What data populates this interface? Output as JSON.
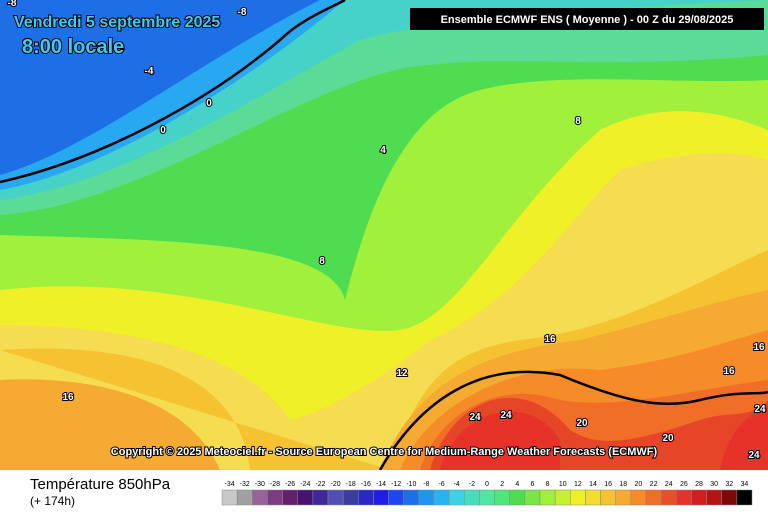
{
  "header": {
    "date": "Vendredi 5 septembre 2025",
    "time": "8:00 locale",
    "model": "Ensemble ECMWF ENS  ( Moyenne )  -  00 Z du 29/08/2025"
  },
  "copyright": "Copyright © 2025 Meteociel.fr - Source European Centre for Medium-Range Weather Forecasts (ECMWF)",
  "footer": {
    "variable": "Température 850hPa",
    "lead": "(+ 174h)"
  },
  "scale": {
    "values": [
      -34,
      -32,
      -30,
      -28,
      -26,
      -24,
      -22,
      -20,
      -18,
      -16,
      -14,
      -12,
      -10,
      -8,
      -6,
      -4,
      -2,
      0,
      2,
      4,
      6,
      8,
      10,
      12,
      14,
      16,
      18,
      20,
      22,
      24,
      26,
      28,
      30,
      32,
      34
    ],
    "colors": [
      "#c8c8c8",
      "#a0a0a0",
      "#966496",
      "#7d3c82",
      "#641e6e",
      "#46146e",
      "#3c2896",
      "#5050b4",
      "#3c3ca0",
      "#2828c8",
      "#1e1ee6",
      "#1e46f0",
      "#1e6ee6",
      "#1e96f0",
      "#28b4f0",
      "#3cd2e6",
      "#46dcbe",
      "#50e6a0",
      "#50e678",
      "#50dc50",
      "#78e646",
      "#a0f03c",
      "#c8f032",
      "#f0f028",
      "#f5dc32",
      "#f5c332",
      "#f5aa32",
      "#f58c28",
      "#f06e28",
      "#e65028",
      "#e63228",
      "#d21e1e",
      "#b41414",
      "#780a0a",
      "#000000"
    ]
  },
  "contour_labels": [
    "-8",
    "-8",
    "-4",
    "0",
    "0",
    "4",
    "8",
    "8",
    "12",
    "16",
    "16",
    "16",
    "16",
    "20",
    "20",
    "24",
    "24",
    "24",
    "24"
  ]
}
